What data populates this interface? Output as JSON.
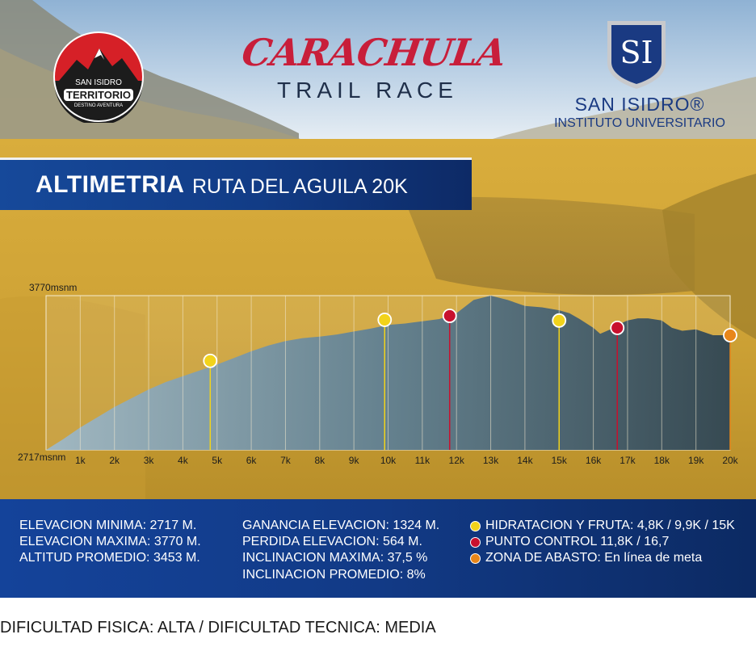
{
  "header": {
    "left_logo": {
      "line1": "SAN ISIDRO",
      "line2": "TERRITORIO",
      "line3": "DESTINO AVENTURA"
    },
    "event_name": "CARACHULA",
    "event_sub": "TRAIL RACE",
    "right_logo": {
      "shield": "SI",
      "name": "SAN ISIDRO®",
      "sub": "INSTITUTO UNIVERSITARIO"
    }
  },
  "title": {
    "main": "ALTIMETRIA",
    "sub": "RUTA DEL AGUILA 20K"
  },
  "chart_data": {
    "type": "area",
    "ylim": [
      2717,
      3770
    ],
    "y_max_label": "3770msnm",
    "y_min_label": "2717msnm",
    "xlim": [
      0,
      20
    ],
    "xtick_labels": [
      "1k",
      "2k",
      "3k",
      "4k",
      "5k",
      "6k",
      "7k",
      "8k",
      "9k",
      "10k",
      "11k",
      "12k",
      "13k",
      "14k",
      "15k",
      "16k",
      "17k",
      "18k",
      "19k",
      "20k"
    ],
    "grid": "vertical",
    "x": [
      0,
      0.5,
      1,
      1.5,
      2,
      2.5,
      3,
      3.5,
      4,
      4.5,
      5,
      5.5,
      6,
      6.5,
      7,
      7.5,
      8,
      8.5,
      9,
      9.5,
      10,
      10.5,
      11,
      11.5,
      12,
      12.5,
      13,
      13.5,
      14,
      14.5,
      15,
      15.3,
      15.6,
      16,
      16.2,
      16.5,
      16.8,
      17,
      17.3,
      17.6,
      18,
      18.3,
      18.6,
      19,
      19.5,
      20
    ],
    "elevation": [
      2717,
      2790,
      2870,
      2940,
      3010,
      3070,
      3130,
      3180,
      3220,
      3260,
      3300,
      3345,
      3390,
      3430,
      3460,
      3480,
      3490,
      3505,
      3525,
      3545,
      3570,
      3580,
      3595,
      3610,
      3650,
      3740,
      3770,
      3740,
      3700,
      3690,
      3670,
      3650,
      3610,
      3550,
      3510,
      3540,
      3580,
      3600,
      3615,
      3615,
      3600,
      3550,
      3530,
      3540,
      3500,
      3500
    ],
    "markers": [
      {
        "km": 4.8,
        "type": "hydration",
        "color": "#f2d31b",
        "elevation": 3325
      },
      {
        "km": 9.9,
        "type": "hydration",
        "color": "#f2d31b",
        "elevation": 3605
      },
      {
        "km": 11.8,
        "type": "control",
        "color": "#c8102e",
        "elevation": 3632
      },
      {
        "km": 15,
        "type": "hydration",
        "color": "#f2d31b",
        "elevation": 3600
      },
      {
        "km": 16.7,
        "type": "control",
        "color": "#c8102e",
        "elevation": 3550
      },
      {
        "km": 20,
        "type": "supply",
        "color": "#e8861a",
        "elevation": 3500
      }
    ]
  },
  "stats": {
    "col1": [
      "ELEVACION MINIMA: 2717 M.",
      "ELEVACION MAXIMA: 3770 M.",
      "ALTITUD PROMEDIO: 3453 M."
    ],
    "col2": [
      "GANANCIA ELEVACION: 1324 M.",
      "PERDIDA ELEVACION: 564 M.",
      "INCLINACION MAXIMA: 37,5 %",
      "INCLINACION PROMEDIO: 8%"
    ],
    "legend": [
      {
        "label": "HIDRATACION Y FRUTA: 4,8K / 9,9K / 15K",
        "color": "#f2d31b"
      },
      {
        "label": "PUNTO CONTROL 11,8K / 16,7",
        "color": "#c8102e"
      },
      {
        "label": "ZONA DE ABASTO: En línea de meta",
        "color": "#e8861a"
      }
    ]
  },
  "footer": {
    "difficulty": "DIFICULTAD FISICA: ALTA   /   DIFICULTAD TECNICA: MEDIA"
  }
}
